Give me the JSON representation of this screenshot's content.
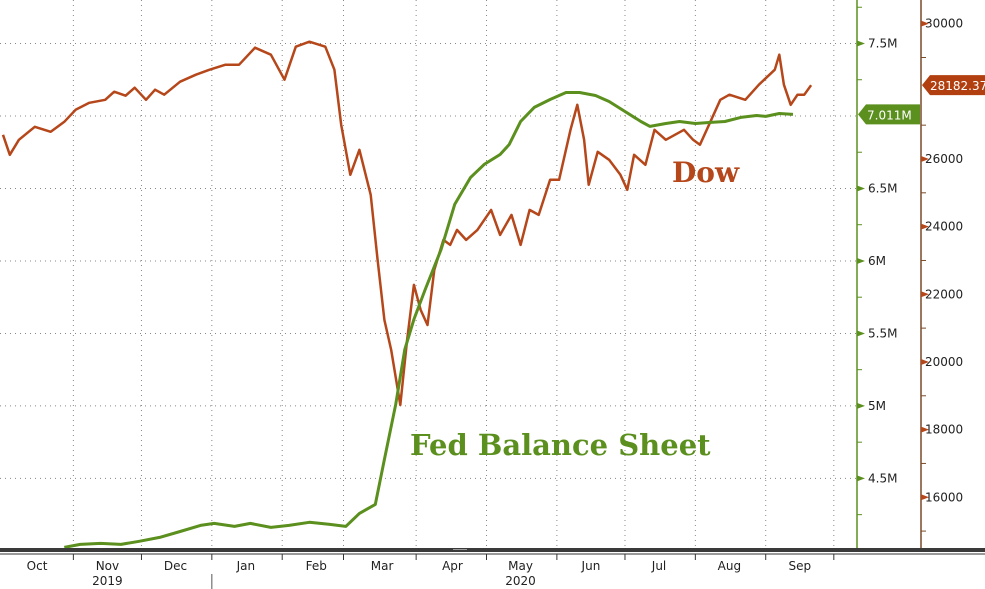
{
  "chart_data": {
    "type": "line",
    "title": "",
    "x_unit": "days since 2019-10-01",
    "x_start_date": "2019-10-01",
    "x_ticks": [
      {
        "label": "Oct",
        "day": 15
      },
      {
        "label": "Nov",
        "day": 46
      },
      {
        "label": "Dec",
        "day": 76
      },
      {
        "label": "Jan",
        "day": 107
      },
      {
        "label": "Feb",
        "day": 138
      },
      {
        "label": "Mar",
        "day": 167
      },
      {
        "label": "Apr",
        "day": 198
      },
      {
        "label": "May",
        "day": 228
      },
      {
        "label": "Jun",
        "day": 259
      },
      {
        "label": "Jul",
        "day": 289
      },
      {
        "label": "Aug",
        "day": 320
      },
      {
        "label": "Sep",
        "day": 351
      }
    ],
    "month_boundaries": [
      31,
      61,
      92,
      123,
      150,
      182,
      213,
      244,
      274,
      305,
      336,
      366
    ],
    "years": [
      {
        "label": "2019",
        "day": 46
      },
      {
        "label": "2020",
        "day": 228
      }
    ],
    "year_boundary_day": 92,
    "xlim": [
      0,
      377
    ],
    "colors": {
      "dow": "#b5471a",
      "fed": "#5b8f1e"
    },
    "axes": {
      "fed": {
        "ylim": [
          4.02,
          7.8
        ],
        "ticks": [
          4.5,
          5,
          5.5,
          6,
          6.5,
          7.5
        ],
        "tick_labels": [
          "4.5M",
          "5M",
          "5.5M",
          "6M",
          "6.5M",
          "7.5M"
        ]
      },
      "dow": {
        "ylim": [
          14500,
          30700
        ],
        "ticks": [
          16000,
          18000,
          20000,
          22000,
          24000,
          26000,
          30000
        ],
        "tick_labels": [
          "16000",
          "18000",
          "20000",
          "22000",
          "24000",
          "26000",
          "30000"
        ]
      }
    },
    "series": [
      {
        "name": "Dow",
        "axis": "dow",
        "last_label": "28182.37",
        "x": [
          0,
          3,
          7,
          14,
          21,
          27,
          32,
          38,
          45,
          49,
          54,
          58,
          63,
          67,
          71,
          78,
          85,
          91,
          98,
          104,
          111,
          118,
          124,
          129,
          135,
          142,
          146,
          149,
          153,
          157,
          162,
          165,
          168,
          171,
          175,
          178,
          181,
          184,
          187,
          190,
          194,
          197,
          200,
          204,
          209,
          215,
          219,
          224,
          228,
          232,
          236,
          241,
          245,
          250,
          253,
          256,
          258,
          262,
          267,
          272,
          275,
          278,
          283,
          287,
          292,
          296,
          300,
          304,
          307,
          311,
          316,
          320,
          327,
          333,
          340,
          342,
          344,
          347,
          350,
          353,
          356
        ],
        "values": [
          26716,
          26124,
          26568,
          26952,
          26804,
          27100,
          27455,
          27662,
          27751,
          27988,
          27870,
          28106,
          27751,
          28047,
          27899,
          28284,
          28491,
          28639,
          28787,
          28787,
          29290,
          29083,
          28343,
          29319,
          29467,
          29319,
          28639,
          27011,
          25532,
          26272,
          24940,
          23017,
          21241,
          20354,
          18726,
          20650,
          22277,
          21537,
          21093,
          22721,
          23609,
          23461,
          23905,
          23609,
          23905,
          24496,
          23757,
          24348,
          23461,
          24496,
          24348,
          25384,
          25384,
          26864,
          27603,
          26568,
          25236,
          26213,
          25976,
          25532,
          25088,
          26124,
          25828,
          26864,
          26568,
          26716,
          26864,
          26568,
          26420,
          27011,
          27751,
          27899,
          27751,
          28195,
          28639,
          29083,
          28195,
          27603,
          27899,
          27899,
          28182
        ]
      },
      {
        "name": "Fed Balance Sheet",
        "axis": "fed",
        "last_label": "7.011M",
        "x": [
          27,
          34,
          43,
          52,
          60,
          69,
          78,
          87,
          93,
          102,
          109,
          118,
          126,
          135,
          144,
          151,
          157,
          164,
          168,
          173,
          177,
          181,
          186,
          193,
          199,
          206,
          212,
          219,
          223,
          228,
          234,
          241,
          248,
          254,
          261,
          267,
          274,
          281,
          285,
          292,
          298,
          305,
          311,
          318,
          325,
          332,
          336,
          342,
          348
        ],
        "values": [
          4.024,
          4.045,
          4.052,
          4.045,
          4.066,
          4.093,
          4.134,
          4.176,
          4.19,
          4.169,
          4.19,
          4.162,
          4.176,
          4.197,
          4.183,
          4.169,
          4.259,
          4.321,
          4.631,
          5.01,
          5.39,
          5.597,
          5.803,
          6.079,
          6.39,
          6.576,
          6.666,
          6.734,
          6.803,
          6.962,
          7.059,
          7.114,
          7.162,
          7.162,
          7.141,
          7.1,
          7.031,
          6.962,
          6.928,
          6.948,
          6.962,
          6.948,
          6.955,
          6.962,
          6.99,
          7.003,
          6.997,
          7.017,
          7.011
        ]
      }
    ],
    "annotations": {
      "dow": "Dow",
      "fed": "Fed Balance Sheet"
    },
    "grid": true
  }
}
